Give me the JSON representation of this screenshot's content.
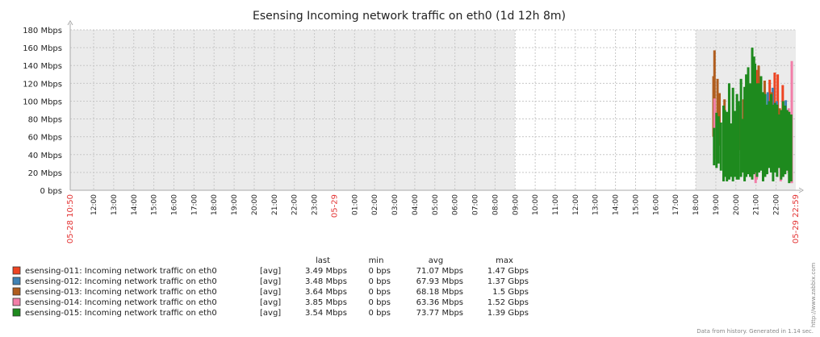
{
  "chart_data": {
    "type": "bar",
    "title": "Esensing Incoming network traffic on eth0 (1d 12h 8m)",
    "y_ticks": [
      "0 bps",
      "20 Mbps",
      "40 Mbps",
      "60 Mbps",
      "80 Mbps",
      "100 Mbps",
      "120 Mbps",
      "140 Mbps",
      "160 Mbps",
      "180 Mbps"
    ],
    "ylim": [
      0,
      180
    ],
    "y_unit": "Mbps",
    "x_start_label": "05-28 10:50",
    "x_end_label": "05-29 22:59",
    "x_time_ticks": [
      {
        "label": "12:00",
        "h": 1.1667
      },
      {
        "label": "13:00",
        "h": 2.1667
      },
      {
        "label": "14:00",
        "h": 3.1667
      },
      {
        "label": "15:00",
        "h": 4.1667
      },
      {
        "label": "16:00",
        "h": 5.1667
      },
      {
        "label": "17:00",
        "h": 6.1667
      },
      {
        "label": "18:00",
        "h": 7.1667
      },
      {
        "label": "19:00",
        "h": 8.1667
      },
      {
        "label": "20:00",
        "h": 9.1667
      },
      {
        "label": "21:00",
        "h": 10.1667
      },
      {
        "label": "22:00",
        "h": 11.1667
      },
      {
        "label": "23:00",
        "h": 12.1667
      },
      {
        "label": "05-29",
        "h": 13.1667,
        "red": true
      },
      {
        "label": "01:00",
        "h": 14.1667
      },
      {
        "label": "02:00",
        "h": 15.1667
      },
      {
        "label": "03:00",
        "h": 16.1667
      },
      {
        "label": "04:00",
        "h": 17.1667
      },
      {
        "label": "05:00",
        "h": 18.1667
      },
      {
        "label": "06:00",
        "h": 19.1667
      },
      {
        "label": "07:00",
        "h": 20.1667
      },
      {
        "label": "08:00",
        "h": 21.1667
      },
      {
        "label": "09:00",
        "h": 22.1667
      },
      {
        "label": "10:00",
        "h": 23.1667
      },
      {
        "label": "11:00",
        "h": 24.1667
      },
      {
        "label": "12:00",
        "h": 25.1667
      },
      {
        "label": "13:00",
        "h": 26.1667
      },
      {
        "label": "14:00",
        "h": 27.1667
      },
      {
        "label": "15:00",
        "h": 28.1667
      },
      {
        "label": "16:00",
        "h": 29.1667
      },
      {
        "label": "17:00",
        "h": 30.1667
      },
      {
        "label": "18:00",
        "h": 31.1667
      },
      {
        "label": "19:00",
        "h": 32.1667
      },
      {
        "label": "20:00",
        "h": 33.1667
      },
      {
        "label": "21:00",
        "h": 34.1667
      },
      {
        "label": "22:00",
        "h": 35.1667
      }
    ],
    "x_total_hours": 36.15,
    "no_data_hours": [
      [
        22.1667,
        31.1667
      ]
    ],
    "series": [
      {
        "name": "esensing-011: Incoming network traffic on eth0",
        "color": "#ee4422",
        "samples": [
          [
            35.1,
            57,
            132
          ],
          [
            35.25,
            60,
            130
          ],
          [
            34.2,
            80,
            135
          ],
          [
            34.85,
            70,
            124
          ],
          [
            34.5,
            60,
            110
          ],
          [
            35.5,
            70,
            118
          ]
        ]
      },
      {
        "name": "esensing-012: Incoming network traffic on eth0",
        "color": "#3f82b5",
        "samples": [
          [
            35.0,
            60,
            115
          ],
          [
            34.75,
            62,
            110
          ],
          [
            35.65,
            50,
            101
          ],
          [
            35.2,
            65,
            100
          ]
        ]
      },
      {
        "name": "esensing-013: Incoming network traffic on eth0",
        "color": "#b05d1e",
        "samples": [
          [
            32.1,
            40,
            157
          ],
          [
            32.05,
            60,
            128
          ],
          [
            32.25,
            40,
            125
          ],
          [
            32.35,
            50,
            109
          ],
          [
            33.55,
            55,
            102
          ],
          [
            33.8,
            60,
            110
          ],
          [
            34.3,
            60,
            140
          ],
          [
            34.05,
            50,
            130
          ],
          [
            34.6,
            55,
            123
          ],
          [
            34.95,
            45,
            110
          ],
          [
            32.6,
            50,
            102
          ],
          [
            33.35,
            45,
            95
          ],
          [
            34.45,
            50,
            96
          ],
          [
            33.15,
            55,
            88
          ],
          [
            35.35,
            45,
            92
          ]
        ]
      },
      {
        "name": "esensing-014: Incoming network traffic on eth0",
        "color": "#f27ea8",
        "samples": [
          [
            35.95,
            8,
            145
          ],
          [
            35.4,
            10,
            78
          ],
          [
            32.1,
            35,
            103
          ],
          [
            34.2,
            12,
            88
          ],
          [
            34.15,
            8,
            76
          ],
          [
            35.6,
            18,
            90
          ],
          [
            35.8,
            20,
            92
          ]
        ]
      },
      {
        "name": "esensing-015: Incoming network traffic on eth0",
        "color": "#1e8a1e",
        "samples": [
          [
            32.08,
            28,
            70
          ],
          [
            32.2,
            25,
            87
          ],
          [
            32.3,
            30,
            83
          ],
          [
            32.42,
            22,
            76
          ],
          [
            32.55,
            10,
            95
          ],
          [
            32.62,
            15,
            90
          ],
          [
            32.72,
            10,
            88
          ],
          [
            32.83,
            12,
            120
          ],
          [
            32.93,
            15,
            75
          ],
          [
            33.02,
            10,
            115
          ],
          [
            33.12,
            15,
            89
          ],
          [
            33.22,
            12,
            108
          ],
          [
            33.3,
            12,
            100
          ],
          [
            33.42,
            15,
            125
          ],
          [
            33.52,
            20,
            80
          ],
          [
            33.6,
            10,
            116
          ],
          [
            33.68,
            15,
            130
          ],
          [
            33.78,
            18,
            138
          ],
          [
            33.88,
            15,
            120
          ],
          [
            33.98,
            12,
            160
          ],
          [
            34.07,
            18,
            150
          ],
          [
            34.12,
            20,
            142
          ],
          [
            34.22,
            15,
            120
          ],
          [
            34.32,
            20,
            120
          ],
          [
            34.42,
            22,
            128
          ],
          [
            34.52,
            10,
            110
          ],
          [
            34.62,
            15,
            108
          ],
          [
            34.72,
            18,
            96
          ],
          [
            34.82,
            25,
            100
          ],
          [
            34.92,
            20,
            108
          ],
          [
            35.02,
            10,
            96
          ],
          [
            35.12,
            20,
            98
          ],
          [
            35.22,
            15,
            96
          ],
          [
            35.32,
            25,
            85
          ],
          [
            35.42,
            12,
            90
          ],
          [
            35.52,
            15,
            100
          ],
          [
            35.62,
            18,
            95
          ],
          [
            35.72,
            22,
            90
          ],
          [
            35.82,
            8,
            88
          ],
          [
            35.92,
            10,
            85
          ]
        ]
      }
    ]
  },
  "legend": {
    "headers": {
      "last": "last",
      "min": "min",
      "avg": "avg",
      "max": "max"
    },
    "rows": [
      {
        "name": "esensing-011: Incoming network traffic on eth0",
        "func": "[avg]",
        "last": "3.49 Mbps",
        "min": "0 bps",
        "avg": "71.07 Mbps",
        "max": "1.47 Gbps",
        "color": "#ee4422"
      },
      {
        "name": "esensing-012: Incoming network traffic on eth0",
        "func": "[avg]",
        "last": "3.48 Mbps",
        "min": "0 bps",
        "avg": "67.93 Mbps",
        "max": "1.37 Gbps",
        "color": "#3f82b5"
      },
      {
        "name": "esensing-013: Incoming network traffic on eth0",
        "func": "[avg]",
        "last": "3.64 Mbps",
        "min": "0 bps",
        "avg": "68.18 Mbps",
        "max": "1.5 Gbps",
        "color": "#b05d1e"
      },
      {
        "name": "esensing-014: Incoming network traffic on eth0",
        "func": "[avg]",
        "last": "3.85 Mbps",
        "min": "0 bps",
        "avg": "63.36 Mbps",
        "max": "1.52 Gbps",
        "color": "#f27ea8"
      },
      {
        "name": "esensing-015: Incoming network traffic on eth0",
        "func": "[avg]",
        "last": "3.54 Mbps",
        "min": "0 bps",
        "avg": "73.77 Mbps",
        "max": "1.39 Gbps",
        "color": "#1e8a1e"
      }
    ]
  },
  "footer": {
    "url": "http://www.zabbix.com",
    "generated": "Data from history. Generated in 1.14 sec."
  },
  "colors": {
    "plot_bg": "#ebebeb",
    "no_data_bg": "#ffffff",
    "grid": "#c8c8c8",
    "axis_text": "#222222",
    "red_text": "#e33333"
  }
}
